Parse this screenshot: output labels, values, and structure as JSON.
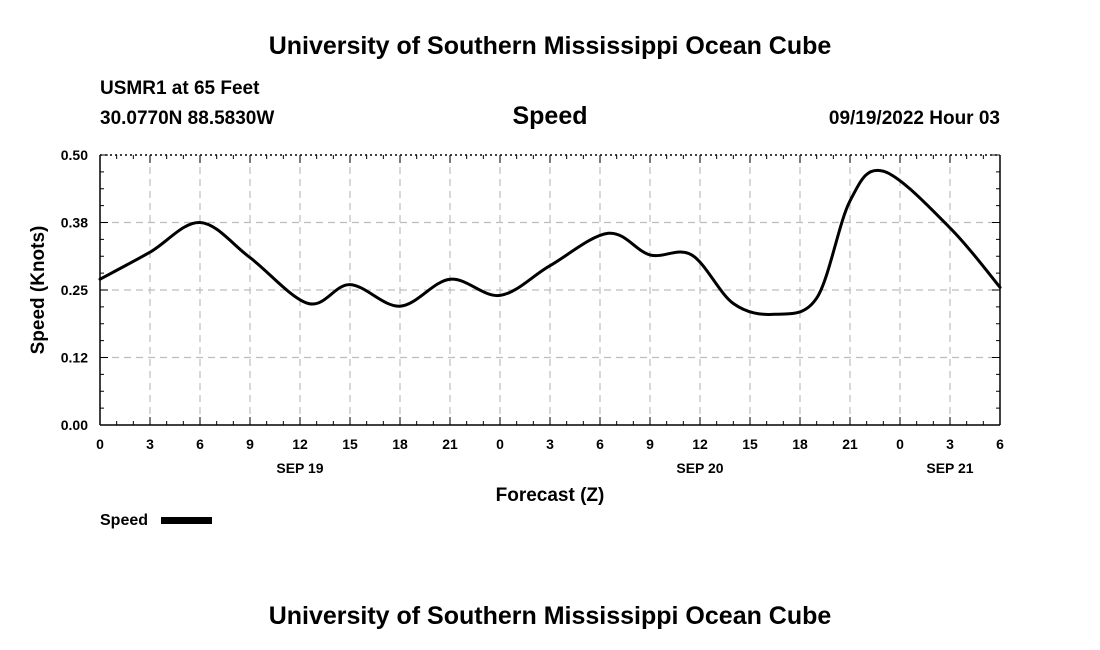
{
  "header": {
    "title": "University of Southern Mississippi Ocean Cube",
    "station": "USMR1 at 65 Feet",
    "coordinates": "30.0770N  88.5830W",
    "datetime": "09/19/2022 Hour 03"
  },
  "footer": {
    "title": "University of Southern Mississippi Ocean Cube"
  },
  "chart_data": {
    "type": "line",
    "title": "Speed",
    "xlabel": "Forecast (Z)",
    "ylabel": "Speed (Knots)",
    "ylim": [
      0,
      0.5
    ],
    "xlim": [
      0,
      54
    ],
    "y_ticks": [
      "0.00",
      "0.12",
      "0.25",
      "0.38",
      "0.50"
    ],
    "x_ticks": [
      "0",
      "3",
      "6",
      "9",
      "12",
      "15",
      "18",
      "21",
      "0",
      "3",
      "6",
      "9",
      "12",
      "15",
      "18",
      "21",
      "0",
      "3",
      "6"
    ],
    "date_labels": [
      {
        "label": "SEP 19",
        "hour": 12
      },
      {
        "label": "SEP 20",
        "hour": 36
      },
      {
        "label": "SEP 21",
        "hour": 51
      }
    ],
    "grid": true,
    "legend": "bottom-left",
    "series": [
      {
        "name": "Speed",
        "color": "#000000",
        "x": [
          0,
          3,
          6,
          9,
          12.5,
          15,
          18,
          21,
          24,
          27,
          30.5,
          33,
          35.5,
          38,
          40.5,
          43,
          45,
          47,
          51,
          54
        ],
        "y": [
          0.27,
          0.32,
          0.375,
          0.31,
          0.225,
          0.26,
          0.22,
          0.27,
          0.24,
          0.295,
          0.355,
          0.315,
          0.315,
          0.225,
          0.205,
          0.235,
          0.415,
          0.47,
          0.365,
          0.255
        ]
      }
    ]
  }
}
